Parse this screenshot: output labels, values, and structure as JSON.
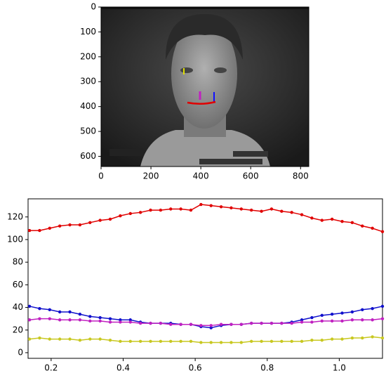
{
  "chart_data": [
    {
      "type": "image",
      "xlim": [
        0,
        833
      ],
      "ylim": [
        641,
        0
      ],
      "xticks": [
        0,
        200,
        400,
        600,
        800
      ],
      "yticks": [
        0,
        100,
        200,
        300,
        400,
        500,
        600
      ]
    },
    {
      "type": "line",
      "x": [
        0.14,
        0.168,
        0.196,
        0.224,
        0.252,
        0.28,
        0.308,
        0.336,
        0.364,
        0.392,
        0.42,
        0.448,
        0.476,
        0.504,
        0.532,
        0.56,
        0.588,
        0.616,
        0.644,
        0.672,
        0.7,
        0.728,
        0.756,
        0.784,
        0.812,
        0.84,
        0.868,
        0.896,
        0.924,
        0.952,
        0.98,
        1.008,
        1.036,
        1.064,
        1.092,
        1.12
      ],
      "xlim": [
        0.136,
        1.12
      ],
      "ylim": [
        -5,
        136
      ],
      "xticks": [
        0.2,
        0.4,
        0.6,
        0.8,
        {
          "value": 1.0,
          "label": "1.0"
        }
      ],
      "yticks": [
        0,
        20,
        40,
        60,
        80,
        100,
        120
      ],
      "series": [
        {
          "color": "#e00000",
          "values": [
            108,
            108,
            110,
            112,
            113,
            113,
            115,
            117,
            118,
            121,
            123,
            124,
            126,
            126,
            127,
            127,
            126,
            131,
            130,
            129,
            128,
            127,
            126,
            125,
            127,
            125,
            124,
            122,
            119,
            117,
            118,
            116,
            115,
            112,
            110,
            107
          ]
        },
        {
          "color": "#1010cc",
          "values": [
            41,
            39,
            38,
            36,
            36,
            34,
            32,
            31,
            30,
            29,
            29,
            27,
            26,
            26,
            26,
            25,
            25,
            23,
            22,
            24,
            25,
            25,
            26,
            26,
            26,
            26,
            27,
            29,
            31,
            33,
            34,
            35,
            36,
            38,
            39,
            41
          ]
        },
        {
          "color": "#c020c0",
          "values": [
            29,
            30,
            30,
            29,
            29,
            29,
            28,
            28,
            27,
            27,
            27,
            26,
            26,
            26,
            25,
            25,
            25,
            24,
            24,
            25,
            25,
            25,
            26,
            26,
            26,
            26,
            26,
            27,
            27,
            28,
            28,
            28,
            29,
            29,
            29,
            30
          ]
        },
        {
          "color": "#c8c820",
          "values": [
            12,
            13,
            12,
            12,
            12,
            11,
            12,
            12,
            11,
            10,
            10,
            10,
            10,
            10,
            10,
            10,
            10,
            9,
            9,
            9,
            9,
            9,
            10,
            10,
            10,
            10,
            10,
            10,
            11,
            11,
            12,
            12,
            13,
            13,
            14,
            13
          ]
        }
      ]
    }
  ]
}
